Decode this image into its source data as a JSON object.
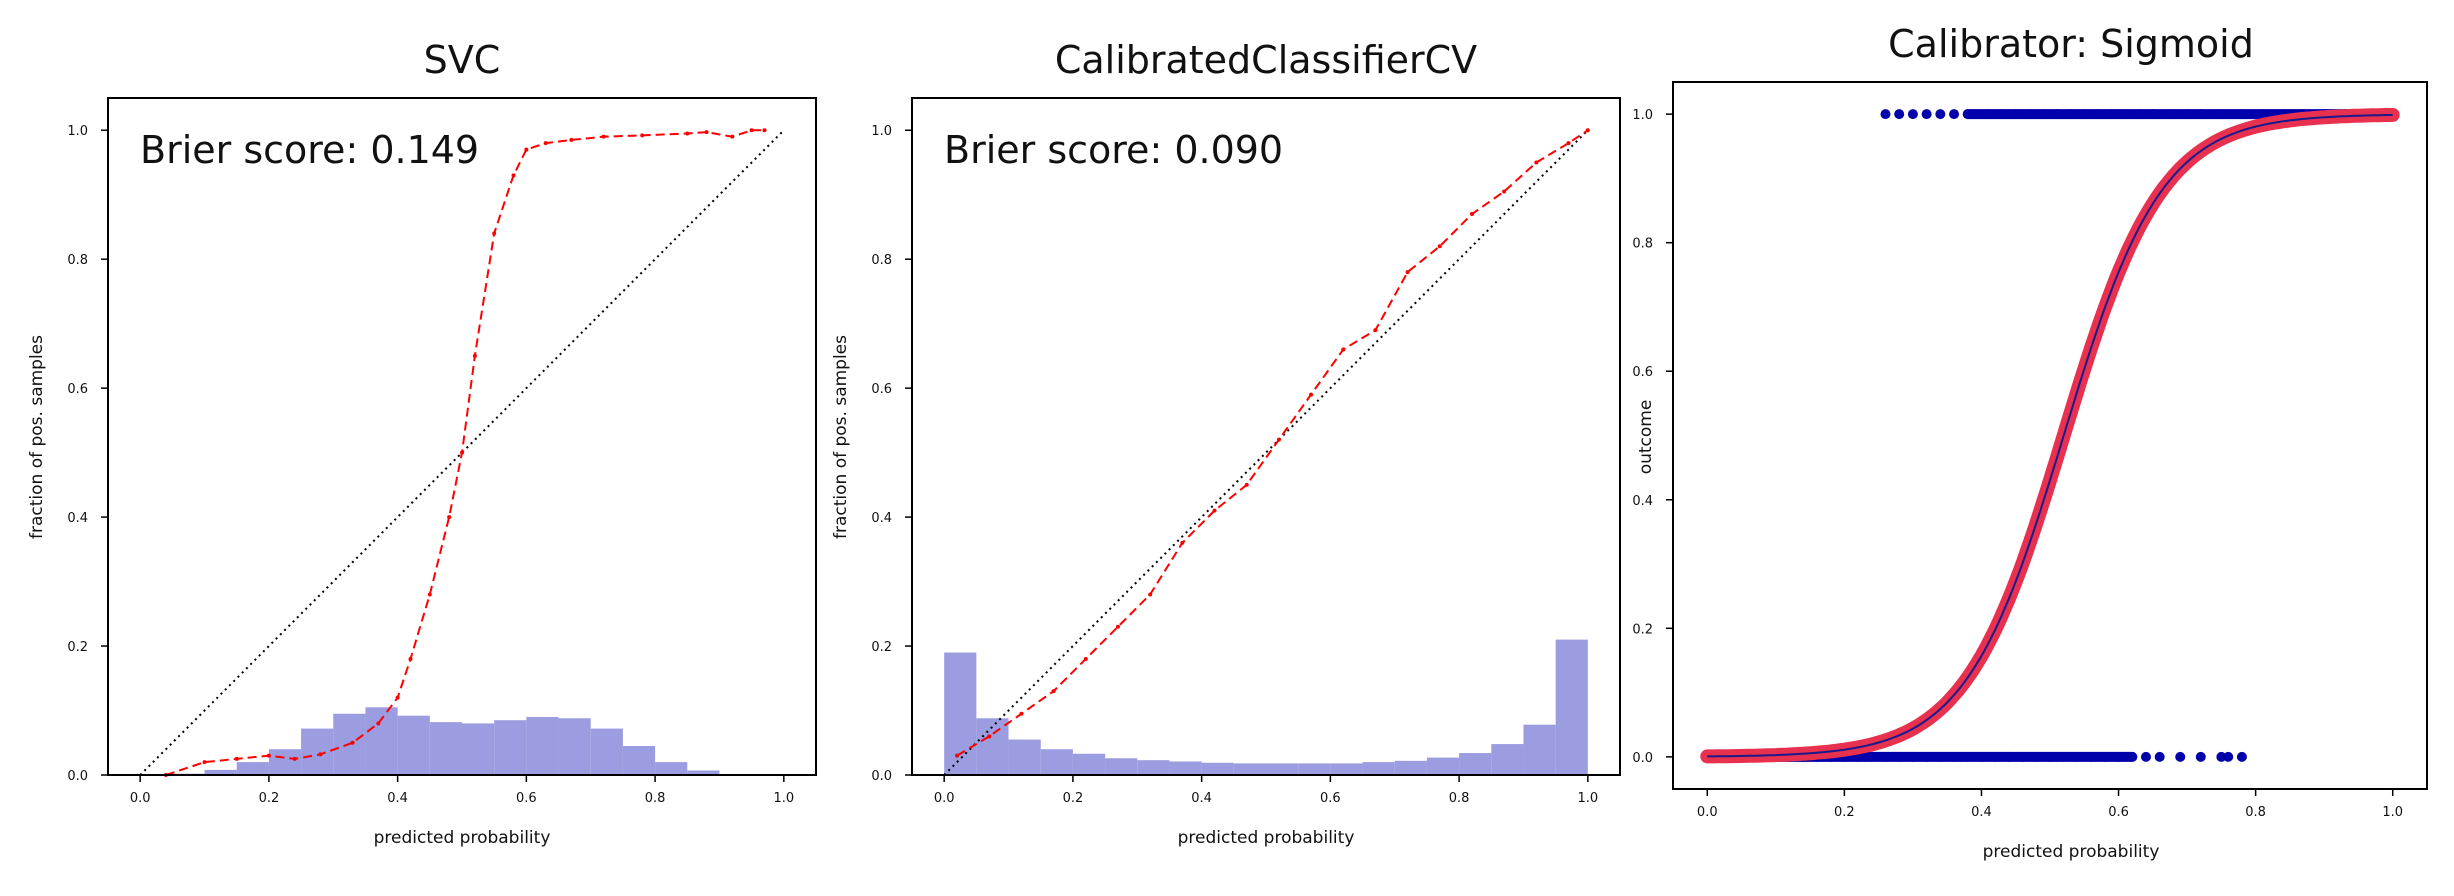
{
  "chart_data": [
    {
      "type": "line",
      "title": "SVC",
      "xlabel": "predicted probability",
      "ylabel": "fraction of pos. samples",
      "annotation": "Brier score: 0.149",
      "xlim": [
        -0.05,
        1.05
      ],
      "ylim": [
        0,
        1.05
      ],
      "xticks": [
        "0.0",
        "0.2",
        "0.4",
        "0.6",
        "0.8",
        "1.0"
      ],
      "yticks": [
        "0.0",
        "0.2",
        "0.4",
        "0.6",
        "0.8",
        "1.0"
      ],
      "reference_line": {
        "x": [
          0,
          1
        ],
        "y": [
          0,
          1
        ]
      },
      "curve": {
        "x": [
          0.04,
          0.1,
          0.15,
          0.2,
          0.24,
          0.28,
          0.33,
          0.37,
          0.4,
          0.42,
          0.45,
          0.48,
          0.5,
          0.52,
          0.55,
          0.58,
          0.6,
          0.63,
          0.67,
          0.72,
          0.78,
          0.85,
          0.88,
          0.92,
          0.95,
          0.97
        ],
        "y": [
          0.0,
          0.02,
          0.025,
          0.03,
          0.025,
          0.032,
          0.05,
          0.08,
          0.12,
          0.18,
          0.28,
          0.4,
          0.5,
          0.65,
          0.84,
          0.93,
          0.97,
          0.98,
          0.985,
          0.99,
          0.992,
          0.995,
          0.997,
          0.99,
          1.0,
          1.0
        ]
      },
      "histogram": {
        "bin_edges": [
          0.0,
          0.05,
          0.1,
          0.15,
          0.2,
          0.25,
          0.3,
          0.35,
          0.4,
          0.45,
          0.5,
          0.55,
          0.6,
          0.65,
          0.7,
          0.75,
          0.8,
          0.85,
          0.9,
          0.95,
          1.0
        ],
        "values": [
          0.0,
          0.002,
          0.008,
          0.02,
          0.04,
          0.072,
          0.095,
          0.105,
          0.092,
          0.082,
          0.08,
          0.085,
          0.09,
          0.088,
          0.072,
          0.045,
          0.02,
          0.007,
          0.0,
          0.0
        ]
      },
      "colors": {
        "curve": "#ff0000",
        "histogram": "#9b9de0",
        "reference": "#000000"
      }
    },
    {
      "type": "line",
      "title": "CalibratedClassifierCV",
      "xlabel": "predicted probability",
      "ylabel": "fraction of pos. samples",
      "annotation": "Brier score: 0.090",
      "xlim": [
        -0.05,
        1.05
      ],
      "ylim": [
        0,
        1.05
      ],
      "xticks": [
        "0.0",
        "0.2",
        "0.4",
        "0.6",
        "0.8",
        "1.0"
      ],
      "yticks": [
        "0.0",
        "0.2",
        "0.4",
        "0.6",
        "0.8",
        "1.0"
      ],
      "reference_line": {
        "x": [
          0,
          1
        ],
        "y": [
          0,
          1
        ]
      },
      "curve": {
        "x": [
          0.02,
          0.07,
          0.12,
          0.17,
          0.22,
          0.27,
          0.32,
          0.37,
          0.42,
          0.47,
          0.52,
          0.57,
          0.62,
          0.67,
          0.72,
          0.77,
          0.82,
          0.87,
          0.92,
          0.97,
          1.0
        ],
        "y": [
          0.03,
          0.06,
          0.095,
          0.13,
          0.18,
          0.23,
          0.28,
          0.36,
          0.41,
          0.45,
          0.52,
          0.59,
          0.66,
          0.69,
          0.78,
          0.82,
          0.87,
          0.905,
          0.95,
          0.98,
          1.0
        ]
      },
      "histogram": {
        "bin_edges": [
          0.0,
          0.05,
          0.1,
          0.15,
          0.2,
          0.25,
          0.3,
          0.35,
          0.4,
          0.45,
          0.5,
          0.55,
          0.6,
          0.65,
          0.7,
          0.75,
          0.8,
          0.85,
          0.9,
          0.95,
          1.0
        ],
        "values": [
          0.19,
          0.088,
          0.055,
          0.04,
          0.033,
          0.026,
          0.023,
          0.021,
          0.019,
          0.018,
          0.018,
          0.018,
          0.018,
          0.02,
          0.022,
          0.027,
          0.034,
          0.048,
          0.078,
          0.21
        ]
      },
      "colors": {
        "curve": "#ff0000",
        "histogram": "#9b9de0",
        "reference": "#000000"
      }
    },
    {
      "type": "scatter",
      "title": "Calibrator: Sigmoid",
      "xlabel": "predicted probability",
      "ylabel": "outcome",
      "xlim": [
        -0.05,
        1.05
      ],
      "ylim": [
        -0.05,
        1.05
      ],
      "xticks": [
        "0.0",
        "0.2",
        "0.4",
        "0.6",
        "0.8",
        "1.0"
      ],
      "yticks": [
        "0.0",
        "0.2",
        "0.4",
        "0.6",
        "0.8",
        "1.0"
      ],
      "sigmoid": {
        "center": 0.52,
        "slope": 14
      },
      "outcome_1_points": [
        0.26,
        0.28,
        0.3,
        0.32,
        0.34,
        0.36,
        0.38,
        0.41,
        0.43,
        0.45,
        0.47,
        0.49,
        0.51,
        0.53,
        0.55,
        0.57,
        0.59,
        0.61,
        0.63,
        0.65,
        0.68,
        0.7,
        0.72,
        0.75,
        0.78,
        0.81,
        0.84,
        0.87,
        0.9,
        0.93,
        0.96,
        0.98,
        1.0
      ],
      "outcome_0_points": [
        0.0,
        0.05,
        0.06,
        0.09,
        0.1,
        0.12,
        0.14,
        0.16,
        0.18,
        0.2,
        0.22,
        0.24,
        0.26,
        0.28,
        0.3,
        0.32,
        0.34,
        0.36,
        0.38,
        0.4,
        0.42,
        0.44,
        0.46,
        0.48,
        0.5,
        0.52,
        0.54,
        0.56,
        0.58,
        0.6,
        0.62,
        0.64,
        0.66,
        0.69,
        0.72,
        0.75,
        0.76,
        0.78
      ],
      "calibrated_points": [
        0.0,
        0.05,
        0.06,
        0.09,
        0.1,
        0.12,
        0.15,
        0.18,
        0.21,
        0.24,
        0.27,
        0.3,
        0.33,
        0.36,
        0.39,
        0.42,
        0.45,
        0.48,
        0.51,
        0.54,
        0.57,
        0.6,
        0.63,
        0.66,
        0.69,
        0.72,
        0.75,
        0.78,
        0.81,
        0.84,
        0.87,
        0.9,
        0.93,
        0.96,
        0.98,
        1.0
      ],
      "colors": {
        "outcome_points": "#0000aa",
        "calibrated_points": "#e8304f",
        "sigmoid_line": "#1a1a8c"
      }
    }
  ]
}
